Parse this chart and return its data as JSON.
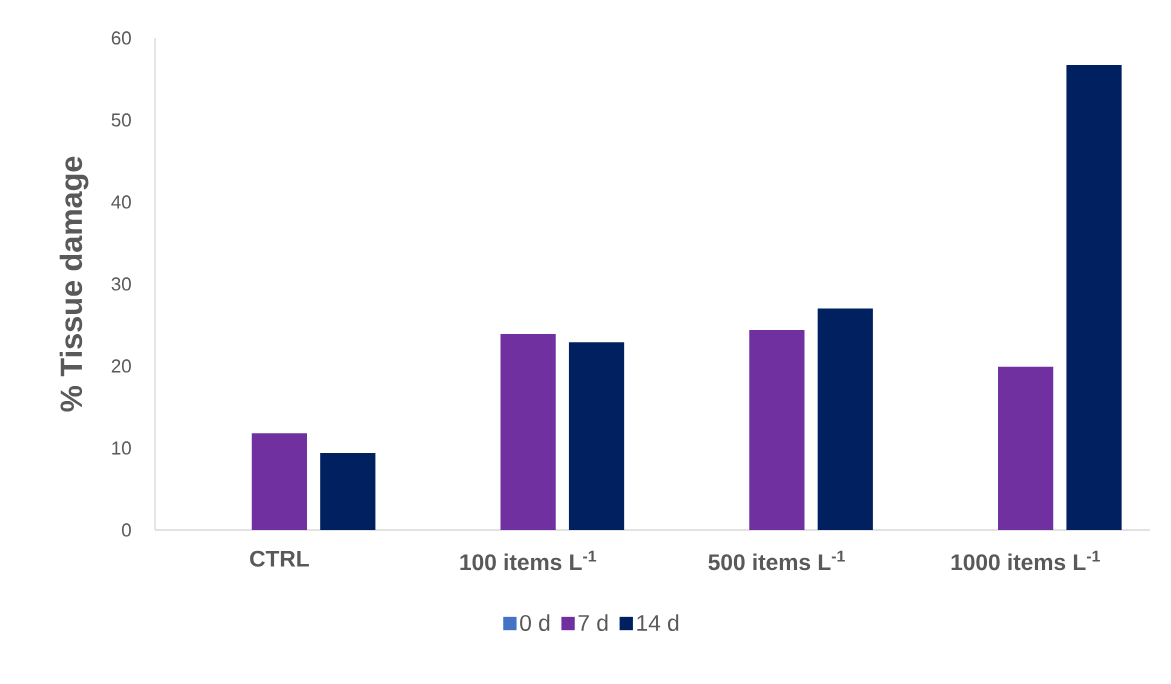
{
  "chart_data": {
    "type": "bar",
    "ylabel": "% Tissue damage",
    "categories": [
      "CTRL",
      "100 items L$^{-1}$",
      "500 items L$^{-1}$",
      "1000 items L$^{-1}$"
    ],
    "series": [
      {
        "name": "0 d",
        "color": "#4472c4",
        "values": [
          0,
          0,
          0,
          0
        ]
      },
      {
        "name": "7 d",
        "color": "#7030a0",
        "values": [
          11.8,
          23.9,
          24.4,
          19.9
        ]
      },
      {
        "name": "14 d",
        "color": "#002060",
        "values": [
          9.4,
          22.9,
          27.0,
          56.7
        ]
      }
    ],
    "ylim": [
      0,
      60
    ],
    "yticks": [
      0,
      10,
      20,
      30,
      40,
      50,
      60
    ],
    "grid": false,
    "legend": "bottom"
  }
}
